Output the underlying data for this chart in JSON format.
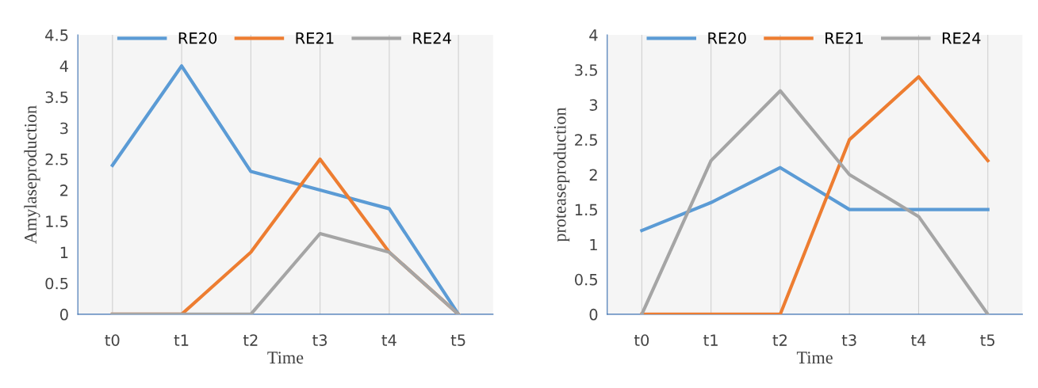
{
  "chart_data": [
    {
      "type": "line",
      "xlabel": "Time",
      "ylabel": "Amylaseproduction",
      "categories": [
        "t0",
        "t1",
        "t2",
        "t3",
        "t4",
        "t5"
      ],
      "ylim": [
        0,
        4.5
      ],
      "yticks": [
        0,
        0.5,
        1,
        1.5,
        2,
        2.5,
        3,
        3.5,
        4,
        4.5
      ],
      "grid": "x",
      "legend": "top",
      "series": [
        {
          "name": "RE20",
          "color": "#5b9bd5",
          "values": [
            2.4,
            4,
            2.3,
            2.0,
            1.7,
            0
          ]
        },
        {
          "name": "RE21",
          "color": "#ed7d31",
          "values": [
            0,
            0,
            1,
            2.5,
            1,
            0
          ]
        },
        {
          "name": "RE24",
          "color": "#a5a5a5",
          "values": [
            0,
            0,
            0,
            1.3,
            1,
            0
          ]
        }
      ]
    },
    {
      "type": "line",
      "xlabel": "Time",
      "ylabel": "proteaseproduction",
      "categories": [
        "t0",
        "t1",
        "t2",
        "t3",
        "t4",
        "t5"
      ],
      "ylim": [
        0,
        4
      ],
      "yticks": [
        0,
        0.5,
        1,
        1.5,
        2,
        2.5,
        3,
        3.5,
        4
      ],
      "grid": "x",
      "legend": "top",
      "series": [
        {
          "name": "RE20",
          "color": "#5b9bd5",
          "values": [
            1.2,
            1.6,
            2.1,
            1.5,
            1.5,
            1.5
          ]
        },
        {
          "name": "RE21",
          "color": "#ed7d31",
          "values": [
            0,
            0,
            0,
            2.5,
            3.4,
            2.2
          ]
        },
        {
          "name": "RE24",
          "color": "#a5a5a5",
          "values": [
            0,
            2.2,
            3.2,
            2.0,
            1.4,
            0
          ]
        }
      ]
    }
  ]
}
